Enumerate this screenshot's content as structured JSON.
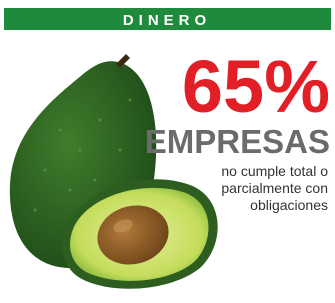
{
  "header": {
    "title": "DINERO"
  },
  "stat": {
    "value": "65%",
    "label": "EMPRESAS",
    "description": [
      "no cumple total o",
      "parcialmente con",
      "obligaciones"
    ]
  }
}
